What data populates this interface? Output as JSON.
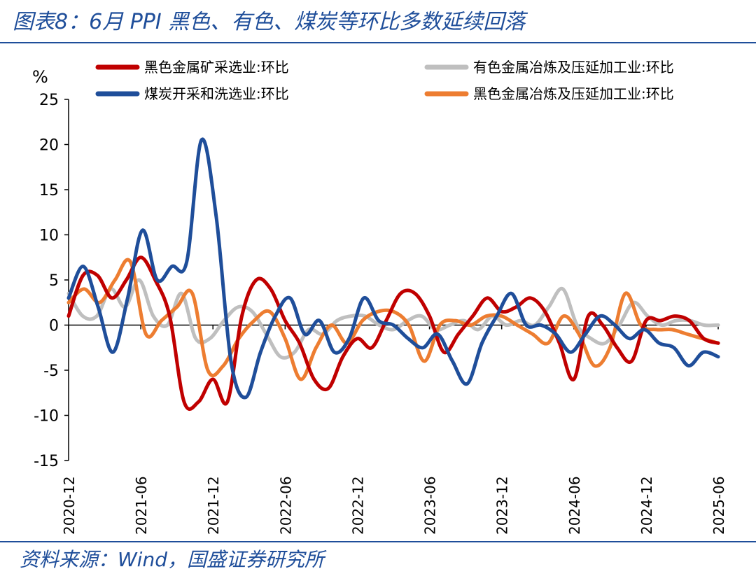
{
  "title": "图表8：6月 PPI 黑色、有色、煤炭等环比多数延续回落",
  "source": "资料来源：Wind，国盛证券研究所",
  "chart_data": {
    "type": "line",
    "unit_label": "%",
    "ylim": [
      -15,
      25
    ],
    "yticks": [
      25,
      20,
      15,
      10,
      5,
      0,
      -5,
      -10,
      -15
    ],
    "xlim": [
      0,
      54
    ],
    "x_tick_labels": [
      "2020-12",
      "2021-06",
      "2021-12",
      "2022-06",
      "2022-12",
      "2023-06",
      "2023-12",
      "2024-06",
      "2024-12",
      "2025-06"
    ],
    "x_tick_positions": [
      0,
      6,
      12,
      18,
      24,
      30,
      36,
      42,
      48,
      54
    ],
    "grid": false,
    "legend_position": "top",
    "series": [
      {
        "name": "黑色金属矿采选业:环比",
        "color": "#c00000",
        "values": [
          1.0,
          5.5,
          5.5,
          3.0,
          5.0,
          7.5,
          5.0,
          1.0,
          -8.5,
          -8.5,
          -6.0,
          -8.5,
          1.0,
          5.0,
          4.0,
          0.5,
          -2.0,
          -6.0,
          -7.0,
          -3.5,
          -1.5,
          -2.5,
          0.5,
          3.5,
          3.5,
          1.0,
          -3.0,
          -1.0,
          1.0,
          3.0,
          1.5,
          2.0,
          3.0,
          1.5,
          -2.0,
          -6.0,
          1.0,
          0.0,
          -2.5,
          -4.0,
          0.5,
          0.5,
          1.0,
          0.5,
          -1.5,
          -2.0
        ]
      },
      {
        "name": "煤炭开采和洗选业:环比",
        "color": "#1f4e9a",
        "values": [
          3.0,
          6.5,
          2.0,
          -3.0,
          3.0,
          10.5,
          5.0,
          6.5,
          7.0,
          20.5,
          12.0,
          -4.0,
          -8.0,
          -3.0,
          1.0,
          3.0,
          -1.0,
          0.5,
          -3.0,
          -1.5,
          3.0,
          0.5,
          0.0,
          -1.5,
          -2.5,
          -1.0,
          -4.0,
          -6.5,
          -2.0,
          1.0,
          3.5,
          0.0,
          0.0,
          -1.0,
          -3.0,
          -1.0,
          1.0,
          0.0,
          -1.5,
          -0.5,
          -2.0,
          -2.5,
          -4.5,
          -3.0,
          -3.5
        ]
      },
      {
        "name": "有色金属冶炼及压延加工业:环比",
        "color": "#bfbfbf",
        "values": [
          3.5,
          1.0,
          1.0,
          4.0,
          2.0,
          5.0,
          1.0,
          0.0,
          3.5,
          -1.5,
          -1.5,
          0.5,
          2.0,
          1.5,
          -1.0,
          -3.5,
          -3.0,
          -0.5,
          -1.0,
          0.5,
          1.0,
          1.0,
          0.0,
          -0.5,
          0.5,
          1.0,
          -0.5,
          0.0,
          0.5,
          -0.5,
          1.0,
          0.0,
          0.5,
          0.0,
          2.0,
          4.0,
          0.0,
          -1.5,
          -2.0,
          0.0,
          2.5,
          1.0,
          0.0,
          0.5,
          0.5,
          0.0,
          0.0
        ]
      },
      {
        "name": "黑色金属冶炼及压延加工业:环比",
        "color": "#ed7d31",
        "values": [
          2.5,
          4.0,
          2.5,
          5.0,
          7.0,
          -1.0,
          0.5,
          2.0,
          3.5,
          -5.0,
          -4.5,
          -1.5,
          0.5,
          1.5,
          -1.5,
          -6.0,
          -2.5,
          0.0,
          -2.0,
          0.5,
          1.5,
          1.5,
          0.0,
          -4.0,
          0.0,
          0.5,
          0.0,
          1.0,
          1.0,
          0.0,
          -1.0,
          -2.0,
          1.0,
          -1.0,
          -4.5,
          -2.5,
          3.5,
          0.0,
          -0.5,
          -0.5,
          -1.0,
          -1.5,
          -2.0
        ]
      }
    ]
  }
}
